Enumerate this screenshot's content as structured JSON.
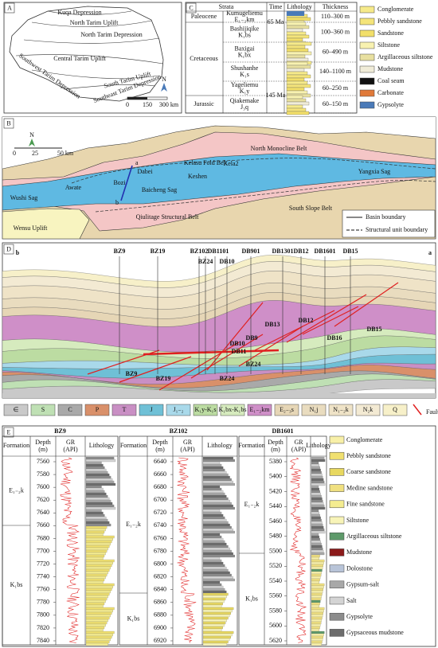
{
  "panel_labels": [
    "A",
    "B",
    "C",
    "D",
    "E"
  ],
  "map_a": {
    "regions": [
      "Kuqa Depression",
      "North Tarim Uplift",
      "North Tarim Depression",
      "Central Tarim Uplift",
      "Southwest Tarim Depression",
      "South Tarim Uplift",
      "Southeast Tarim Depression"
    ],
    "north": "N",
    "scale": [
      "0",
      "150",
      "300 km"
    ]
  },
  "strata_table": {
    "headers": [
      "Strata",
      "Time",
      "Lithology",
      "Thickness"
    ],
    "time_labels": [
      "65 Ma",
      "145 Ma"
    ],
    "periods": [
      {
        "name": "Paleocene",
        "formations": [
          {
            "name": "Kumugeliemu",
            "code": "E₁₋₂km",
            "thickness": "110–300 m"
          }
        ]
      },
      {
        "name": "Cretaceous",
        "formations": [
          {
            "name": "Bashijiqike",
            "code": "K₁bs",
            "thickness": "100–360 m"
          },
          {
            "name": "Baxigai",
            "code": "K₁bx",
            "thickness": "60–490 m"
          },
          {
            "name": "Shushanhe",
            "code": "K₁s",
            "thickness": "140–1100 m"
          },
          {
            "name": "Yageliemu",
            "code": "K₁y",
            "thickness": "60–250 m"
          }
        ]
      },
      {
        "name": "Jurassic",
        "formations": [
          {
            "name": "Qiakemake",
            "code": "J₃q",
            "thickness": "60–150 m"
          }
        ]
      }
    ],
    "legend": [
      {
        "name": "Conglomerate",
        "color": "#f6ea8a"
      },
      {
        "name": "Pebbly sandstone",
        "color": "#f4e47a"
      },
      {
        "name": "Sandstone",
        "color": "#f2df6a"
      },
      {
        "name": "Siltstone",
        "color": "#f8f2b0"
      },
      {
        "name": "Argillaceous siltstone",
        "color": "#e8e0a0"
      },
      {
        "name": "Mudstone",
        "color": "#f0ecd8"
      },
      {
        "name": "Coal seam",
        "color": "#111111"
      },
      {
        "name": "Carbonate",
        "color": "#e07a3a"
      },
      {
        "name": "Gypsolyte",
        "color": "#4a7ab8"
      }
    ]
  },
  "map_b": {
    "units": [
      "North Monocline Belt",
      "Kelasu Fold Belt",
      "Yangxia Sag",
      "Wushi Sag",
      "Baicheng Sag",
      "Qiulitage Structural Belt",
      "South Slope Belt",
      "Wensu Uplift"
    ],
    "wells": [
      "Awate",
      "Bozi",
      "Dabei",
      "Keshen",
      "Kela2"
    ],
    "section_ends": [
      "a",
      "b"
    ],
    "north": "N",
    "scale": [
      "0",
      "25",
      "50 km"
    ],
    "legend": [
      "Basin boundary",
      "Structural unit boundary"
    ]
  },
  "section_d": {
    "ends": [
      "a",
      "b"
    ],
    "wells_top": [
      "BZ9",
      "BZ19",
      "BZ102",
      "BZ24",
      "DB1101",
      "DB10",
      "DB901",
      "DB1301",
      "DB12",
      "DB1601",
      "DB15"
    ],
    "inside_labels": [
      "DB13",
      "DB12",
      "DB15",
      "DB16",
      "DB9",
      "DB10",
      "DB11",
      "BZ24",
      "BZ9",
      "BZ19",
      "BZ24"
    ],
    "legend": [
      {
        "name": "∈",
        "color": "#c9c9c9"
      },
      {
        "name": "S",
        "color": "#bfe0b4"
      },
      {
        "name": "C",
        "color": "#a9a9a9"
      },
      {
        "name": "P",
        "color": "#d9906a"
      },
      {
        "name": "T",
        "color": "#c98fc4"
      },
      {
        "name": "J",
        "color": "#6fc0d6"
      },
      {
        "name": "J₁₋₂",
        "color": "#a9d9ea"
      },
      {
        "name": "K₁y-K₁s",
        "color": "#bcdca2"
      },
      {
        "name": "K₁bx-K₁bs",
        "color": "#d6ebbe"
      },
      {
        "name": "E₁₋₂km",
        "color": "#cf8fc8"
      },
      {
        "name": "E₂₋₃s",
        "color": "#e6d6b6"
      },
      {
        "name": "N₁j",
        "color": "#e9dcbf"
      },
      {
        "name": "N₁₋₂k",
        "color": "#efe3c7"
      },
      {
        "name": "N₂k",
        "color": "#f3ead3"
      },
      {
        "name": "Q",
        "color": "#f7f0c9"
      },
      {
        "name": "Fault",
        "color": "#e02020"
      }
    ]
  },
  "well_logs": {
    "headers": [
      "Formation",
      "Depth",
      "(m)",
      "GR",
      "(API)",
      "Lithology"
    ],
    "wells": [
      {
        "name": "BZ9",
        "formations": [
          "E₁₋₂k",
          "K₁bs"
        ],
        "depths": [
          7560,
          7580,
          7600,
          7620,
          7640,
          7660,
          7680,
          7700,
          7720,
          7740,
          7760,
          7780,
          7800,
          7820,
          7840
        ]
      },
      {
        "name": "BZ102",
        "formations": [
          "E₁₋₂k",
          "K₁bs"
        ],
        "depths": [
          6640,
          6660,
          6680,
          6700,
          6720,
          6740,
          6760,
          6780,
          6800,
          6820,
          6840,
          6860,
          6880,
          6900,
          6920
        ]
      },
      {
        "name": "DB1601",
        "formations": [
          "E₁₋₂k",
          "K₁bs"
        ],
        "depths": [
          5380,
          5400,
          5420,
          5440,
          5460,
          5480,
          5500,
          5520,
          5540,
          5560,
          5580,
          5600,
          5620
        ]
      }
    ],
    "legend": [
      {
        "name": "Conglomerate",
        "color": "#f8f0a8"
      },
      {
        "name": "Pebbly sandstone",
        "color": "#f0e070"
      },
      {
        "name": "Coarse sandstone",
        "color": "#e8d860"
      },
      {
        "name": "Medine sandstone",
        "color": "#f0e080"
      },
      {
        "name": "Fine sandstone",
        "color": "#f4ec90"
      },
      {
        "name": "Siltstone",
        "color": "#f8f4b8"
      },
      {
        "name": "Argillaceous siltstone",
        "color": "#5e9a6a"
      },
      {
        "name": "Mudstone",
        "color": "#8b1a1a"
      },
      {
        "name": "Dolostone",
        "color": "#b8c4d8"
      },
      {
        "name": "Gypsum-salt",
        "color": "#a8a8a8"
      },
      {
        "name": "Salt",
        "color": "#d4d4d4"
      },
      {
        "name": "Gypsolyte",
        "color": "#8c8c8c"
      },
      {
        "name": "Gypsaceous mudstone",
        "color": "#6c6c6c"
      }
    ]
  }
}
